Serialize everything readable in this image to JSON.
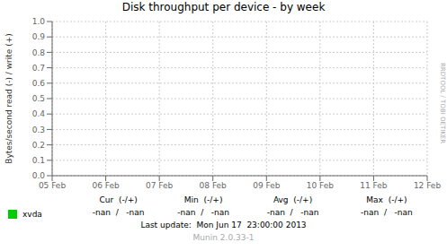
{
  "chart_data": {
    "type": "line",
    "title": "Disk throughput per device - by week",
    "y_label": "Bytes/second read (-) / write (+)",
    "categories": [
      "05 Feb",
      "06 Feb",
      "07 Feb",
      "08 Feb",
      "09 Feb",
      "10 Feb",
      "11 Feb",
      "12 Feb"
    ],
    "series": [
      {
        "name": "xvda",
        "color": "#00cc00",
        "values": [
          null,
          null,
          null,
          null,
          null,
          null,
          null,
          null
        ]
      }
    ],
    "ylim": [
      0.0,
      1.0
    ],
    "yticks": [
      {
        "value": 0.0,
        "label": "0.0"
      },
      0.1,
      0.2,
      0.3,
      0.4,
      0.5,
      0.6,
      0.7,
      0.8,
      0.9,
      {
        "value": 1.0,
        "label": "1.0"
      }
    ],
    "grid": true,
    "legend": "bottom",
    "annotations": [
      "RRDTOOL / TOBI OETIKER",
      "Cur  (-/+)",
      "Min  (-/+)",
      "Avg  (-/+)",
      "Max  (-/+)",
      "-nan  /   -nan",
      "-nan  /   -nan",
      "-nan  /   -nan",
      "-nan  /   -nan",
      "Last update:  Mon Jun 17  23:00:00 2013",
      "Munin 2.0.33-1"
    ]
  }
}
